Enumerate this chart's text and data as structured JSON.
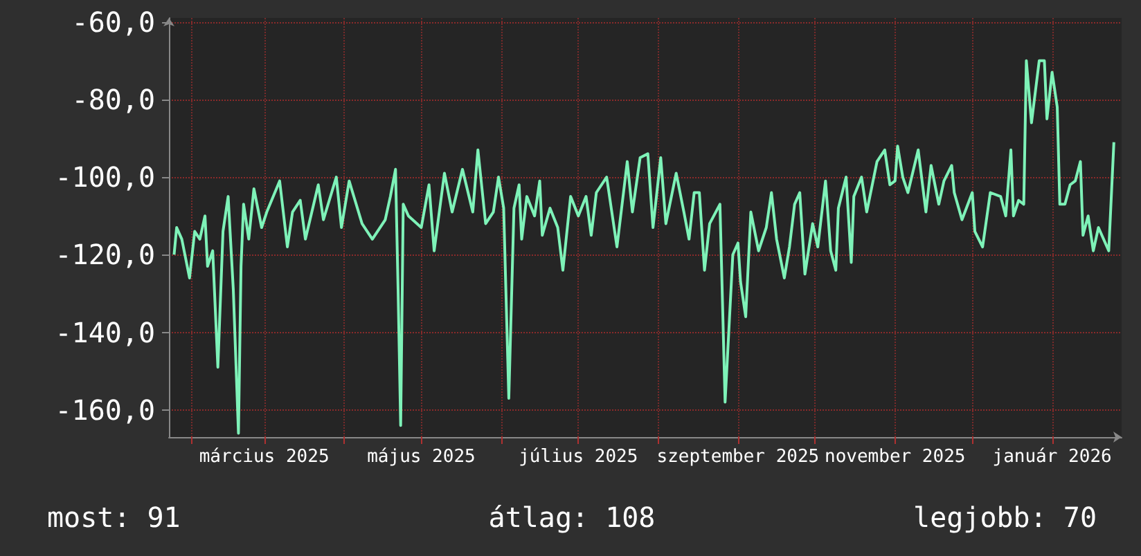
{
  "chart_data": {
    "type": "line",
    "annotations": [
      "most: 91",
      "átlag: 108",
      "legjobb: 70"
    ],
    "x": [
      "2025-01-25",
      "2025-01-26",
      "2025-01-28",
      "2025-01-31",
      "2025-02-02",
      "2025-02-04",
      "2025-02-06",
      "2025-02-07",
      "2025-02-09",
      "2025-02-11",
      "2025-02-13",
      "2025-02-15",
      "2025-02-17",
      "2025-02-19",
      "2025-02-20",
      "2025-02-21",
      "2025-02-23",
      "2025-02-25",
      "2025-02-28",
      "2025-03-02",
      "2025-03-07",
      "2025-03-10",
      "2025-03-12",
      "2025-03-15",
      "2025-03-17",
      "2025-03-22",
      "2025-03-24",
      "2025-03-29",
      "2025-03-31",
      "2025-04-03",
      "2025-04-08",
      "2025-04-12",
      "2025-04-17",
      "2025-04-19",
      "2025-04-21",
      "2025-04-22",
      "2025-04-23",
      "2025-04-24",
      "2025-04-26",
      "2025-05-01",
      "2025-05-04",
      "2025-05-06",
      "2025-05-10",
      "2025-05-13",
      "2025-05-17",
      "2025-05-21",
      "2025-05-23",
      "2025-05-26",
      "2025-05-29",
      "2025-05-31",
      "2025-06-02",
      "2025-06-04",
      "2025-06-06",
      "2025-06-08",
      "2025-06-09",
      "2025-06-11",
      "2025-06-14",
      "2025-06-16",
      "2025-06-17",
      "2025-06-20",
      "2025-06-23",
      "2025-06-25",
      "2025-06-28",
      "2025-07-01",
      "2025-07-04",
      "2025-07-06",
      "2025-07-08",
      "2025-07-12",
      "2025-07-16",
      "2025-07-20",
      "2025-07-22",
      "2025-07-25",
      "2025-07-28",
      "2025-07-30",
      "2025-08-02",
      "2025-08-04",
      "2025-08-08",
      "2025-08-11",
      "2025-08-13",
      "2025-08-15",
      "2025-08-17",
      "2025-08-19",
      "2025-08-21",
      "2025-08-25",
      "2025-08-27",
      "2025-08-30",
      "2025-09-01",
      "2025-09-02",
      "2025-09-04",
      "2025-09-06",
      "2025-09-09",
      "2025-09-12",
      "2025-09-14",
      "2025-09-16",
      "2025-09-19",
      "2025-09-21",
      "2025-09-23",
      "2025-09-25",
      "2025-09-27",
      "2025-09-30",
      "2025-10-02",
      "2025-10-05",
      "2025-10-07",
      "2025-10-09",
      "2025-10-10",
      "2025-10-13",
      "2025-10-15",
      "2025-10-16",
      "2025-10-19",
      "2025-10-21",
      "2025-10-25",
      "2025-10-28",
      "2025-10-30",
      "2025-11-01",
      "2025-11-02",
      "2025-11-04",
      "2025-11-06",
      "2025-11-10",
      "2025-11-13",
      "2025-11-15",
      "2025-11-18",
      "2025-11-20",
      "2025-11-23",
      "2025-11-24",
      "2025-11-27",
      "2025-12-01",
      "2025-12-02",
      "2025-12-05",
      "2025-12-08",
      "2025-12-12",
      "2025-12-14",
      "2025-12-16",
      "2025-12-17",
      "2025-12-19",
      "2025-12-21",
      "2025-12-22",
      "2025-12-24",
      "2025-12-27",
      "2025-12-29",
      "2025-12-30",
      "2026-01-01",
      "2026-01-03",
      "2026-01-04",
      "2026-01-06",
      "2026-01-08",
      "2026-01-10",
      "2026-01-12",
      "2026-01-13",
      "2026-01-15",
      "2026-01-17",
      "2026-01-19",
      "2026-01-23",
      "2026-01-25"
    ],
    "series": [
      {
        "color": "#7ef2b8",
        "values": [
          -120,
          -113,
          -116,
          -126,
          -114,
          -116,
          -110,
          -123,
          -119,
          -149,
          -114,
          -105,
          -129,
          -166,
          -123,
          -107,
          -116,
          -103,
          -113,
          -109,
          -101,
          -118,
          -109,
          -106,
          -116,
          -102,
          -111,
          -100,
          -113,
          -101,
          -112,
          -116,
          -111,
          -105,
          -98,
          -129,
          -164,
          -107,
          -110,
          -113,
          -102,
          -119,
          -99,
          -109,
          -98,
          -109,
          -93,
          -112,
          -109,
          -100,
          -108,
          -157,
          -108,
          -102,
          -116,
          -105,
          -110,
          -101,
          -115,
          -108,
          -113,
          -124,
          -105,
          -110,
          -105,
          -115,
          -104,
          -100,
          -118,
          -96,
          -109,
          -95,
          -94,
          -113,
          -95,
          -112,
          -99,
          -109,
          -116,
          -104,
          -104,
          -124,
          -112,
          -107,
          -158,
          -120,
          -117,
          -127,
          -136,
          -109,
          -119,
          -113,
          -104,
          -116,
          -126,
          -118,
          -107,
          -104,
          -125,
          -112,
          -118,
          -101,
          -119,
          -124,
          -108,
          -100,
          -122,
          -105,
          -100,
          -109,
          -96,
          -93,
          -102,
          -101,
          -92,
          -100,
          -104,
          -93,
          -109,
          -97,
          -107,
          -101,
          -97,
          -104,
          -111,
          -104,
          -114,
          -118,
          -104,
          -105,
          -110,
          -93,
          -110,
          -106,
          -107,
          -70,
          -86,
          -70,
          -70,
          -85,
          -73,
          -82,
          -107,
          -107,
          -102,
          -101,
          -96,
          -115,
          -110,
          -119,
          -113,
          -119,
          -91
        ]
      }
    ],
    "xlim": [
      "2025-01-23",
      "2026-01-28"
    ],
    "xticks": [
      {
        "value": "2025-02-01",
        "label": null
      },
      {
        "value": "2025-03-01",
        "label": "március 2025"
      },
      {
        "value": "2025-04-01",
        "label": null
      },
      {
        "value": "2025-05-01",
        "label": "május 2025"
      },
      {
        "value": "2025-06-01",
        "label": null
      },
      {
        "value": "2025-07-01",
        "label": "július 2025"
      },
      {
        "value": "2025-08-01",
        "label": null
      },
      {
        "value": "2025-09-01",
        "label": "szeptember 2025"
      },
      {
        "value": "2025-10-01",
        "label": null
      },
      {
        "value": "2025-11-01",
        "label": "november 2025"
      },
      {
        "value": "2025-12-01",
        "label": null
      },
      {
        "value": "2026-01-01",
        "label": "január 2026"
      }
    ],
    "ylim": [
      -167,
      -59
    ],
    "yticks": [
      {
        "value": -160,
        "label": "-160,0"
      },
      {
        "value": -140,
        "label": "-140,0"
      },
      {
        "value": -120,
        "label": "-120,0"
      },
      {
        "value": -100,
        "label": "-100,0"
      },
      {
        "value": -80,
        "label": "-80,0"
      },
      {
        "value": -60,
        "label": "-60,0"
      }
    ],
    "grid": true,
    "marker": "none",
    "line_style": "solid"
  }
}
